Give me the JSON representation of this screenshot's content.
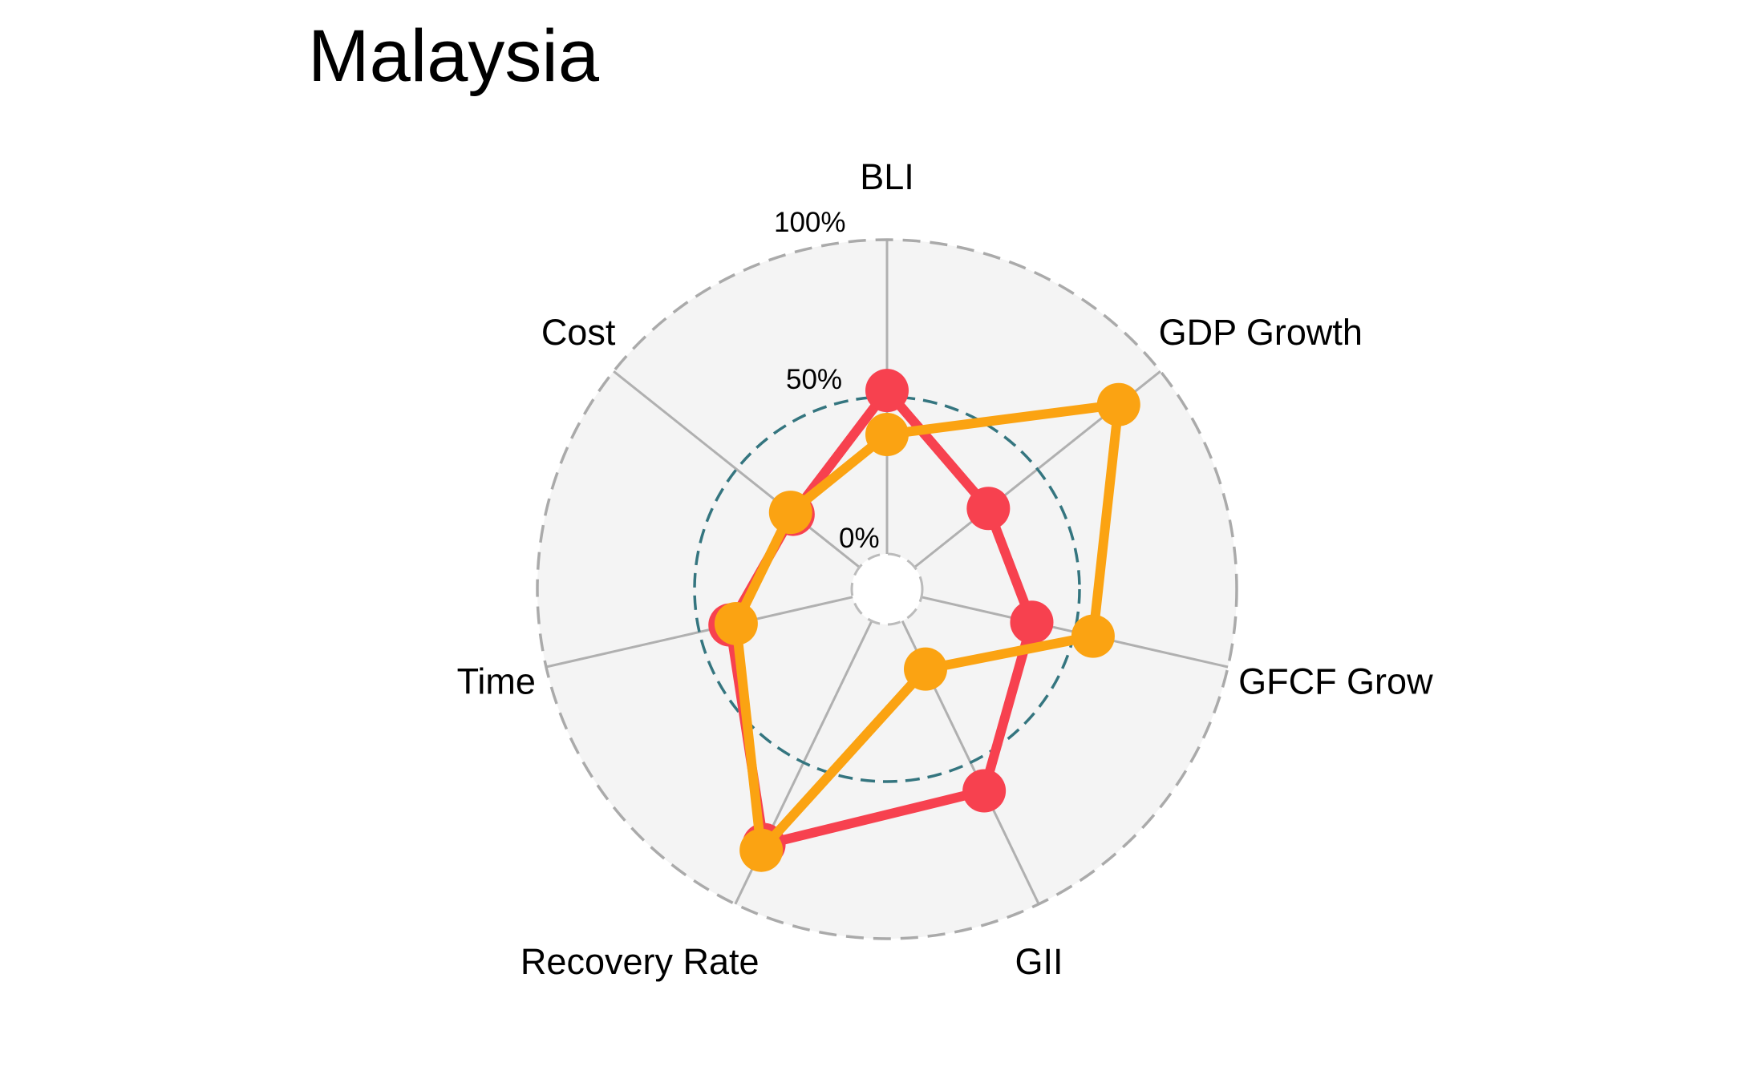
{
  "chart_data": {
    "type": "radar",
    "title": "Malaysia",
    "axes": [
      "BLI",
      "GDP Growth",
      "GFCF Grow",
      "GII",
      "Recovery Rate",
      "Time",
      "Cost"
    ],
    "grid_labels": [
      "0%",
      "50%",
      "100%"
    ],
    "range": [
      0,
      100
    ],
    "grid_values": [
      0,
      50,
      100
    ],
    "series": [
      {
        "values": [
          52,
          30,
          36,
          60,
          79,
          40,
          27
        ],
        "color": "#F7414F"
      },
      {
        "values": [
          38,
          83,
          56,
          17,
          81,
          38,
          28
        ],
        "color": "#FBA312"
      }
    ],
    "colors": {
      "background_fill": "#F4F4F4",
      "axis_line": "#B0B0B0",
      "outer_circle": "#AAAAAA",
      "mid_circle": "#34757F",
      "inner_circle": "#BBBBBB"
    },
    "legend": "none"
  }
}
